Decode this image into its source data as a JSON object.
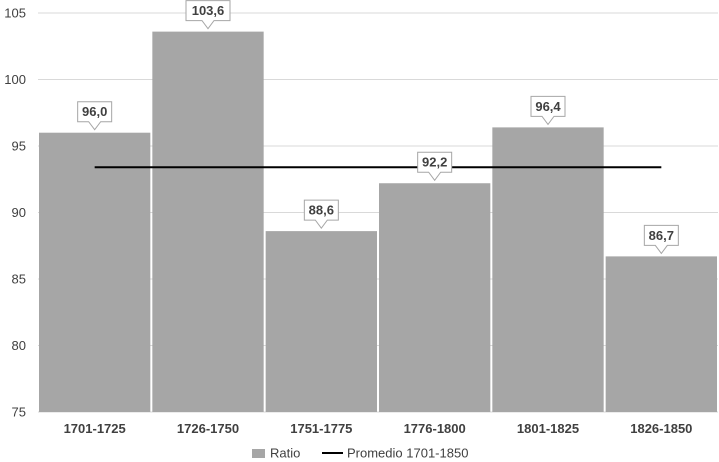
{
  "chart_data": {
    "type": "bar",
    "categories": [
      "1701-1725",
      "1726-1750",
      "1751-1775",
      "1776-1800",
      "1801-1825",
      "1826-1850"
    ],
    "series": [
      {
        "name": "Ratio",
        "values": [
          96.0,
          103.6,
          88.6,
          92.2,
          96.4,
          86.7
        ],
        "value_labels": [
          "96,0",
          "103,6",
          "88,6",
          "92,2",
          "96,4",
          "86,7"
        ],
        "color": "#a6a6a6"
      },
      {
        "name": "Promedio 1701-1850",
        "type": "line",
        "value": 93.4,
        "color": "#000000"
      }
    ],
    "ylim": [
      75,
      105
    ],
    "yticks": [
      75,
      80,
      85,
      90,
      95,
      100,
      105
    ],
    "grid": true,
    "legend": "bottom",
    "title": "",
    "xlabel": "",
    "ylabel": ""
  }
}
